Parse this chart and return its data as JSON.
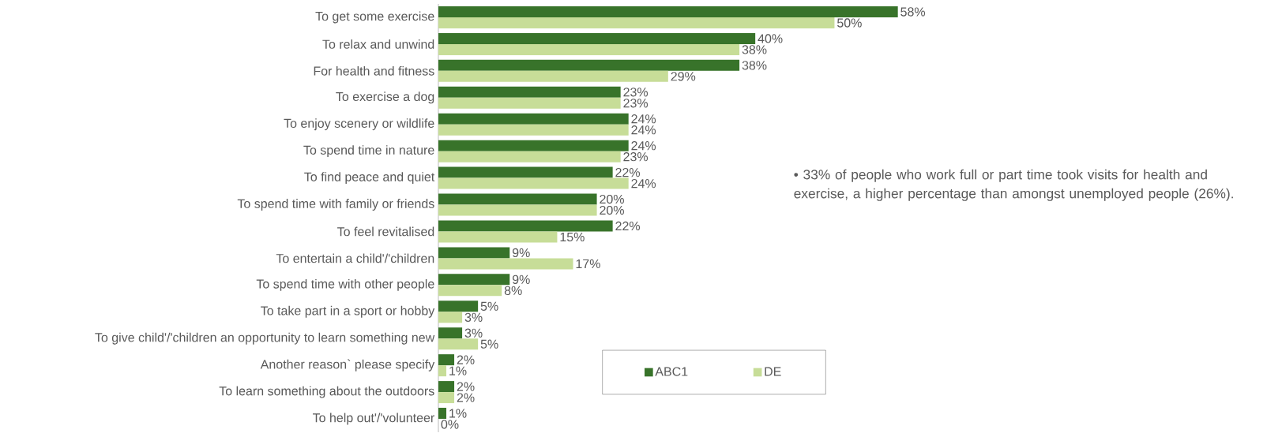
{
  "chart_data": {
    "type": "bar",
    "orientation": "horizontal",
    "categories": [
      "To get some exercise",
      "To relax and unwind",
      "For health and fitness",
      "To exercise a dog",
      "To enjoy scenery or wildlife",
      "To spend time in nature",
      "To find peace and quiet",
      "To spend time with family or friends",
      "To feel revitalised",
      "To entertain a child'/'children",
      "To spend time with other people",
      "To take part in a sport or hobby",
      "To give child'/'children an opportunity to learn something new",
      "Another reason` please specify",
      "To learn something about the outdoors",
      "To help out'/'volunteer"
    ],
    "series": [
      {
        "name": "ABC1",
        "color": "#38732a",
        "values": [
          58,
          40,
          38,
          23,
          24,
          24,
          22,
          20,
          22,
          9,
          9,
          5,
          3,
          2,
          2,
          1
        ],
        "value_labels": [
          "58%",
          "40%",
          "38%",
          "23%",
          "24%",
          "24%",
          "22%",
          "20%",
          "22%",
          "9%",
          "9%",
          "5%",
          "3%",
          "2%",
          "2%",
          "1%"
        ]
      },
      {
        "name": "DE",
        "color": "#c7dd98",
        "values": [
          50,
          38,
          29,
          23,
          24,
          23,
          24,
          20,
          15,
          17,
          8,
          3,
          5,
          1,
          2,
          0
        ],
        "value_labels": [
          "50%",
          "38%",
          "29%",
          "23%",
          "24%",
          "23%",
          "24%",
          "20%",
          "15%",
          "17%",
          "8%",
          "3%",
          "5%",
          "1%",
          "2%",
          "0%"
        ]
      }
    ],
    "legend": "bottom right",
    "annotations": [
      "• 33% of people who work full or part time took visits for health and exercise, a higher percentage than amongst unemployed people (26%)."
    ]
  }
}
